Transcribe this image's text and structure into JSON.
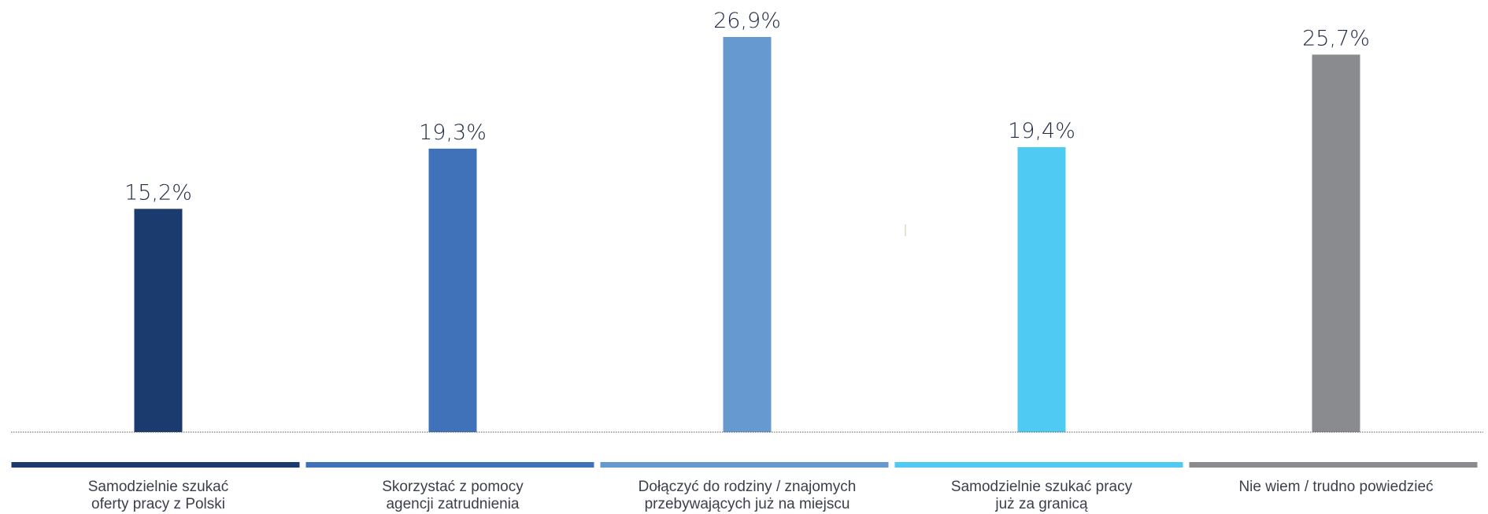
{
  "chart_data": {
    "type": "bar",
    "categories": [
      [
        "Samodzielnie szukać",
        "oferty pracy z Polski"
      ],
      [
        "Skorzystać z pomocy",
        "agencji zatrudnienia"
      ],
      [
        "Dołączyć do rodziny / znajomych",
        "przebywających już na miejscu"
      ],
      [
        "Samodzielnie szukać pracy",
        "już za granicą"
      ],
      [
        "Nie wiem / trudno powiedzieć"
      ]
    ],
    "values": [
      15.2,
      19.3,
      26.9,
      19.4,
      25.7
    ],
    "value_labels": [
      "15,2%",
      "19,3%",
      "26,9%",
      "19,4%",
      "25,7%"
    ],
    "colors": [
      "#1b3a6d",
      "#3f72b8",
      "#6699d0",
      "#4ecaf3",
      "#8a8b8f"
    ],
    "ylim": [
      0,
      26.9
    ],
    "grid": false,
    "legend": "bottom"
  }
}
